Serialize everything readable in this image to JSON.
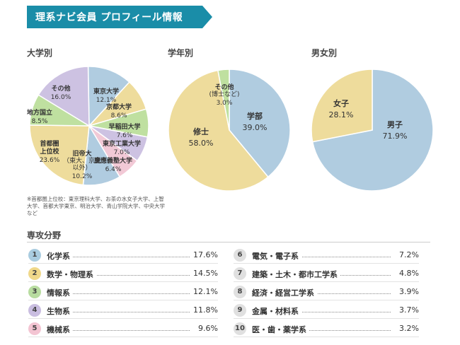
{
  "header": {
    "title": "理系ナビ会員 プロフィール情報"
  },
  "colors": {
    "banner": "#1a8da8",
    "blue": "#b0cce0",
    "yellow": "#eedc9c",
    "green": "#bfe0a0",
    "purple": "#cdc2e2",
    "pink": "#f2c9d6",
    "badge_blue": "#a9cce0",
    "badge_yellow": "#f0d88a",
    "badge_green": "#b8dca0",
    "badge_purple": "#c9bde0",
    "badge_pink": "#f3c4d2",
    "badge_gray": "#e0e0e0"
  },
  "chart_data": [
    {
      "type": "pie",
      "title": "大学別",
      "slices": [
        {
          "label": "東京大学",
          "sublabel": "",
          "value": 12.1,
          "value_text": "12.1%",
          "color": "blue"
        },
        {
          "label": "京都大学",
          "sublabel": "",
          "value": 8.6,
          "value_text": "8.6%",
          "color": "yellow"
        },
        {
          "label": "早稲田大学",
          "sublabel": "",
          "value": 7.6,
          "value_text": "7.6%",
          "color": "green"
        },
        {
          "label": "東京工業大学",
          "sublabel": "",
          "value": 7.0,
          "value_text": "7.0%",
          "color": "purple"
        },
        {
          "label": "慶應義塾大学",
          "sublabel": "",
          "value": 6.4,
          "value_text": "6.4%",
          "color": "pink"
        },
        {
          "label": "旧帝大",
          "sublabel": "（東大、京大以外）",
          "value": 10.2,
          "value_text": "10.2%",
          "color": "blue"
        },
        {
          "label": "首都圏上位校",
          "sublabel": "",
          "value": 23.6,
          "value_text": "23.6%",
          "color": "yellow"
        },
        {
          "label": "地方国立",
          "sublabel": "",
          "value": 8.5,
          "value_text": "8.5%",
          "color": "green"
        },
        {
          "label": "その他",
          "sublabel": "",
          "value": 16.0,
          "value_text": "16.0%",
          "color": "purple"
        }
      ],
      "note": "※首都圏上位校：東京理科大学、お茶の水女子大学、上智大学、首都大学東京、明治大学、青山学院大学、中央大学　など"
    },
    {
      "type": "pie",
      "title": "学年別",
      "slices": [
        {
          "label": "学部",
          "sublabel": "",
          "value": 39.0,
          "value_text": "39.0%",
          "color": "blue"
        },
        {
          "label": "修士",
          "sublabel": "",
          "value": 58.0,
          "value_text": "58.0%",
          "color": "yellow"
        },
        {
          "label": "その他",
          "sublabel": "(博士など)",
          "value": 3.0,
          "value_text": "3.0%",
          "color": "green"
        }
      ]
    },
    {
      "type": "pie",
      "title": "男女別",
      "slices": [
        {
          "label": "男子",
          "sublabel": "",
          "value": 71.9,
          "value_text": "71.9%",
          "color": "blue"
        },
        {
          "label": "女子",
          "sublabel": "",
          "value": 28.1,
          "value_text": "28.1%",
          "color": "yellow"
        }
      ]
    },
    {
      "type": "table",
      "title": "専攻分野",
      "rows": [
        {
          "rank": "1",
          "name": "化学系",
          "value": 17.6,
          "value_text": "17.6%",
          "badge": "badge_blue"
        },
        {
          "rank": "2",
          "name": "数学・物理系",
          "value": 14.5,
          "value_text": "14.5%",
          "badge": "badge_yellow"
        },
        {
          "rank": "3",
          "name": "情報系",
          "value": 12.1,
          "value_text": "12.1%",
          "badge": "badge_green"
        },
        {
          "rank": "4",
          "name": "生物系",
          "value": 11.8,
          "value_text": "11.8%",
          "badge": "badge_purple"
        },
        {
          "rank": "5",
          "name": "機械系",
          "value": 9.6,
          "value_text": "9.6%",
          "badge": "badge_pink"
        },
        {
          "rank": "6",
          "name": "電気・電子系",
          "value": 7.2,
          "value_text": "7.2%",
          "badge": "badge_gray"
        },
        {
          "rank": "7",
          "name": "建築・土木・都市工学系",
          "value": 4.8,
          "value_text": "4.8%",
          "badge": "badge_gray"
        },
        {
          "rank": "8",
          "name": "経済・経営工学系",
          "value": 3.9,
          "value_text": "3.9%",
          "badge": "badge_gray"
        },
        {
          "rank": "9",
          "name": "金属・材料系",
          "value": 3.7,
          "value_text": "3.7%",
          "badge": "badge_gray"
        },
        {
          "rank": "10",
          "name": "医・歯・薬学系",
          "value": 3.2,
          "value_text": "3.2%",
          "badge": "badge_gray"
        }
      ]
    }
  ]
}
